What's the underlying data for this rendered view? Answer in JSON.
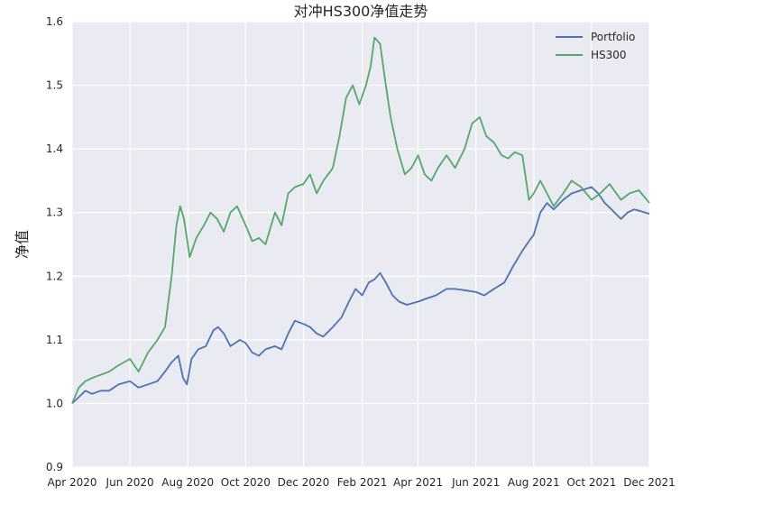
{
  "chart_data": {
    "type": "line",
    "title": "对冲HS300净值走势",
    "xlabel": "",
    "ylabel": "净值",
    "ylim": [
      0.9,
      1.6
    ],
    "yticks": [
      "0.9",
      "1.0",
      "1.1",
      "1.2",
      "1.3",
      "1.4",
      "1.5",
      "1.6"
    ],
    "xlim": [
      "2020-04-01",
      "2021-12-01"
    ],
    "xticks": [
      {
        "date": "2020-04-01",
        "label": "Apr 2020"
      },
      {
        "date": "2020-06-01",
        "label": "Jun 2020"
      },
      {
        "date": "2020-08-01",
        "label": "Aug 2020"
      },
      {
        "date": "2020-10-01",
        "label": "Oct 2020"
      },
      {
        "date": "2020-12-01",
        "label": "Dec 2020"
      },
      {
        "date": "2021-02-01",
        "label": "Feb 2021"
      },
      {
        "date": "2021-04-01",
        "label": "Apr 2021"
      },
      {
        "date": "2021-06-01",
        "label": "Jun 2021"
      },
      {
        "date": "2021-08-01",
        "label": "Aug 2021"
      },
      {
        "date": "2021-10-01",
        "label": "Oct 2021"
      },
      {
        "date": "2021-12-01",
        "label": "Dec 2021"
      }
    ],
    "grid": true,
    "legend_position": "top-right",
    "colors": {
      "background": "#EAEAF2",
      "grid": "#FFFFFF",
      "text": "#262626"
    },
    "series": [
      {
        "name": "Portfolio",
        "color": "#4C72B0",
        "points": [
          [
            "2020-04-01",
            1.0
          ],
          [
            "2020-04-08",
            1.01
          ],
          [
            "2020-04-15",
            1.02
          ],
          [
            "2020-04-22",
            1.015
          ],
          [
            "2020-05-01",
            1.02
          ],
          [
            "2020-05-10",
            1.02
          ],
          [
            "2020-05-20",
            1.03
          ],
          [
            "2020-06-01",
            1.035
          ],
          [
            "2020-06-10",
            1.025
          ],
          [
            "2020-06-20",
            1.03
          ],
          [
            "2020-06-30",
            1.035
          ],
          [
            "2020-07-08",
            1.05
          ],
          [
            "2020-07-15",
            1.065
          ],
          [
            "2020-07-22",
            1.075
          ],
          [
            "2020-07-27",
            1.04
          ],
          [
            "2020-07-31",
            1.03
          ],
          [
            "2020-08-05",
            1.07
          ],
          [
            "2020-08-12",
            1.085
          ],
          [
            "2020-08-20",
            1.09
          ],
          [
            "2020-08-28",
            1.115
          ],
          [
            "2020-09-02",
            1.12
          ],
          [
            "2020-09-08",
            1.11
          ],
          [
            "2020-09-15",
            1.09
          ],
          [
            "2020-09-25",
            1.1
          ],
          [
            "2020-10-01",
            1.095
          ],
          [
            "2020-10-08",
            1.08
          ],
          [
            "2020-10-15",
            1.075
          ],
          [
            "2020-10-22",
            1.085
          ],
          [
            "2020-11-01",
            1.09
          ],
          [
            "2020-11-08",
            1.085
          ],
          [
            "2020-11-15",
            1.11
          ],
          [
            "2020-11-22",
            1.13
          ],
          [
            "2020-12-01",
            1.125
          ],
          [
            "2020-12-08",
            1.12
          ],
          [
            "2020-12-15",
            1.11
          ],
          [
            "2020-12-22",
            1.105
          ],
          [
            "2021-01-01",
            1.12
          ],
          [
            "2021-01-10",
            1.135
          ],
          [
            "2021-01-18",
            1.16
          ],
          [
            "2021-01-25",
            1.18
          ],
          [
            "2021-02-01",
            1.17
          ],
          [
            "2021-02-08",
            1.19
          ],
          [
            "2021-02-14",
            1.195
          ],
          [
            "2021-02-20",
            1.205
          ],
          [
            "2021-02-26",
            1.19
          ],
          [
            "2021-03-05",
            1.17
          ],
          [
            "2021-03-12",
            1.16
          ],
          [
            "2021-03-20",
            1.155
          ],
          [
            "2021-04-01",
            1.16
          ],
          [
            "2021-04-10",
            1.165
          ],
          [
            "2021-04-20",
            1.17
          ],
          [
            "2021-05-01",
            1.18
          ],
          [
            "2021-05-10",
            1.18
          ],
          [
            "2021-05-20",
            1.178
          ],
          [
            "2021-06-01",
            1.175
          ],
          [
            "2021-06-10",
            1.17
          ],
          [
            "2021-06-20",
            1.18
          ],
          [
            "2021-07-01",
            1.19
          ],
          [
            "2021-07-10",
            1.215
          ],
          [
            "2021-07-20",
            1.24
          ],
          [
            "2021-07-27",
            1.255
          ],
          [
            "2021-08-01",
            1.265
          ],
          [
            "2021-08-08",
            1.3
          ],
          [
            "2021-08-15",
            1.315
          ],
          [
            "2021-08-22",
            1.305
          ],
          [
            "2021-09-01",
            1.32
          ],
          [
            "2021-09-10",
            1.33
          ],
          [
            "2021-09-20",
            1.335
          ],
          [
            "2021-10-01",
            1.34
          ],
          [
            "2021-10-08",
            1.33
          ],
          [
            "2021-10-15",
            1.315
          ],
          [
            "2021-10-22",
            1.305
          ],
          [
            "2021-11-01",
            1.29
          ],
          [
            "2021-11-08",
            1.3
          ],
          [
            "2021-11-15",
            1.305
          ],
          [
            "2021-11-22",
            1.302
          ],
          [
            "2021-12-01",
            1.298
          ]
        ]
      },
      {
        "name": "HS300",
        "color": "#55A868",
        "points": [
          [
            "2020-04-01",
            1.0
          ],
          [
            "2020-04-08",
            1.025
          ],
          [
            "2020-04-15",
            1.035
          ],
          [
            "2020-04-22",
            1.04
          ],
          [
            "2020-05-01",
            1.045
          ],
          [
            "2020-05-10",
            1.05
          ],
          [
            "2020-05-20",
            1.06
          ],
          [
            "2020-06-01",
            1.07
          ],
          [
            "2020-06-10",
            1.05
          ],
          [
            "2020-06-20",
            1.08
          ],
          [
            "2020-06-30",
            1.1
          ],
          [
            "2020-07-08",
            1.12
          ],
          [
            "2020-07-15",
            1.2
          ],
          [
            "2020-07-20",
            1.28
          ],
          [
            "2020-07-24",
            1.31
          ],
          [
            "2020-07-28",
            1.29
          ],
          [
            "2020-08-03",
            1.23
          ],
          [
            "2020-08-10",
            1.26
          ],
          [
            "2020-08-18",
            1.28
          ],
          [
            "2020-08-25",
            1.3
          ],
          [
            "2020-09-01",
            1.29
          ],
          [
            "2020-09-08",
            1.27
          ],
          [
            "2020-09-15",
            1.3
          ],
          [
            "2020-09-22",
            1.31
          ],
          [
            "2020-10-01",
            1.28
          ],
          [
            "2020-10-08",
            1.255
          ],
          [
            "2020-10-15",
            1.26
          ],
          [
            "2020-10-22",
            1.25
          ],
          [
            "2020-11-01",
            1.3
          ],
          [
            "2020-11-08",
            1.28
          ],
          [
            "2020-11-15",
            1.33
          ],
          [
            "2020-11-22",
            1.34
          ],
          [
            "2020-12-01",
            1.345
          ],
          [
            "2020-12-08",
            1.36
          ],
          [
            "2020-12-15",
            1.33
          ],
          [
            "2020-12-22",
            1.35
          ],
          [
            "2021-01-01",
            1.37
          ],
          [
            "2021-01-08",
            1.42
          ],
          [
            "2021-01-15",
            1.48
          ],
          [
            "2021-01-22",
            1.5
          ],
          [
            "2021-01-29",
            1.47
          ],
          [
            "2021-02-05",
            1.5
          ],
          [
            "2021-02-10",
            1.53
          ],
          [
            "2021-02-14",
            1.575
          ],
          [
            "2021-02-20",
            1.565
          ],
          [
            "2021-02-26",
            1.5
          ],
          [
            "2021-03-03",
            1.45
          ],
          [
            "2021-03-10",
            1.4
          ],
          [
            "2021-03-18",
            1.36
          ],
          [
            "2021-03-25",
            1.37
          ],
          [
            "2021-04-01",
            1.39
          ],
          [
            "2021-04-08",
            1.36
          ],
          [
            "2021-04-15",
            1.35
          ],
          [
            "2021-04-22",
            1.37
          ],
          [
            "2021-05-01",
            1.39
          ],
          [
            "2021-05-10",
            1.37
          ],
          [
            "2021-05-20",
            1.4
          ],
          [
            "2021-05-28",
            1.44
          ],
          [
            "2021-06-05",
            1.45
          ],
          [
            "2021-06-12",
            1.42
          ],
          [
            "2021-06-20",
            1.41
          ],
          [
            "2021-06-28",
            1.39
          ],
          [
            "2021-07-05",
            1.385
          ],
          [
            "2021-07-12",
            1.395
          ],
          [
            "2021-07-20",
            1.39
          ],
          [
            "2021-07-27",
            1.32
          ],
          [
            "2021-08-01",
            1.33
          ],
          [
            "2021-08-08",
            1.35
          ],
          [
            "2021-08-15",
            1.33
          ],
          [
            "2021-08-22",
            1.31
          ],
          [
            "2021-09-01",
            1.33
          ],
          [
            "2021-09-10",
            1.35
          ],
          [
            "2021-09-20",
            1.34
          ],
          [
            "2021-10-01",
            1.32
          ],
          [
            "2021-10-10",
            1.33
          ],
          [
            "2021-10-20",
            1.345
          ],
          [
            "2021-11-01",
            1.32
          ],
          [
            "2021-11-10",
            1.33
          ],
          [
            "2021-11-20",
            1.335
          ],
          [
            "2021-12-01",
            1.315
          ]
        ]
      }
    ]
  }
}
